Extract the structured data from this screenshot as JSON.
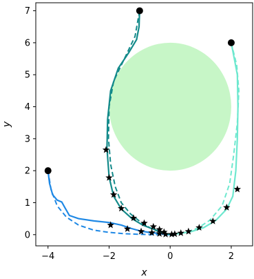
{
  "chart_data": {
    "type": "line",
    "title": "",
    "xlabel": "x",
    "ylabel": "y",
    "xlim": [
      -4.4,
      2.7
    ],
    "ylim": [
      -0.35,
      7.25
    ],
    "xticks": [
      -4,
      -2,
      0,
      2
    ],
    "yticks": [
      0,
      1,
      2,
      3,
      4,
      5,
      6,
      7
    ],
    "grid": false,
    "legend": "none",
    "obstacle": {
      "shape": "circle",
      "center": [
        0,
        4
      ],
      "radius": 2,
      "color": "#90ee90"
    },
    "series": [
      {
        "color": "#1e88e5",
        "start": [
          -4,
          2
        ],
        "solid": [
          [
            -4,
            2
          ],
          [
            -3.95,
            1.6
          ],
          [
            -3.85,
            1.25
          ],
          [
            -3.7,
            1.08
          ],
          [
            -3.55,
            1.02
          ],
          [
            -3.45,
            0.85
          ],
          [
            -3.3,
            0.6
          ],
          [
            -3.0,
            0.5
          ],
          [
            -2.5,
            0.43
          ],
          [
            -2.0,
            0.38
          ],
          [
            -1.6,
            0.3
          ],
          [
            -1.3,
            0.2
          ],
          [
            -1.0,
            0.12
          ],
          [
            -0.7,
            0.07
          ],
          [
            -0.4,
            0.04
          ],
          [
            -0.15,
            0.01
          ],
          [
            0,
            0
          ]
        ],
        "dashed": [
          [
            -4,
            2
          ],
          [
            -3.9,
            1.4
          ],
          [
            -3.7,
            0.9
          ],
          [
            -3.4,
            0.55
          ],
          [
            -3.0,
            0.3
          ],
          [
            -2.5,
            0.14
          ],
          [
            -2.0,
            0.07
          ],
          [
            -1.5,
            0.03
          ],
          [
            -1.0,
            0.01
          ],
          [
            -0.5,
            0
          ],
          [
            0,
            0
          ]
        ],
        "markers": [
          [
            -1.95,
            0.3
          ],
          [
            -1.4,
            0.18
          ],
          [
            -0.95,
            0.1
          ],
          [
            -0.6,
            0.06
          ],
          [
            -0.35,
            0.03
          ],
          [
            -0.15,
            0.01
          ]
        ]
      },
      {
        "color": "#138a8a",
        "start": [
          -1,
          7
        ],
        "solid": [
          [
            -1,
            7
          ],
          [
            -1.02,
            6.5
          ],
          [
            -1.1,
            6.1
          ],
          [
            -1.35,
            5.7
          ],
          [
            -1.7,
            5.2
          ],
          [
            -1.95,
            4.5
          ],
          [
            -2.05,
            3.6
          ],
          [
            -2.07,
            2.7
          ],
          [
            -2.0,
            1.8
          ],
          [
            -1.85,
            1.2
          ],
          [
            -1.6,
            0.8
          ],
          [
            -1.25,
            0.5
          ],
          [
            -0.9,
            0.3
          ],
          [
            -0.55,
            0.17
          ],
          [
            -0.25,
            0.07
          ],
          [
            0,
            0
          ]
        ],
        "dashed": [
          [
            -1,
            7
          ],
          [
            -1.15,
            6.2
          ],
          [
            -1.5,
            5.5
          ],
          [
            -1.85,
            4.8
          ],
          [
            -2.0,
            4.0
          ],
          [
            -2.02,
            3.0
          ],
          [
            -1.95,
            2.2
          ],
          [
            -1.8,
            1.5
          ],
          [
            -1.6,
            1.0
          ],
          [
            -1.3,
            0.65
          ],
          [
            -0.95,
            0.38
          ],
          [
            -0.6,
            0.18
          ],
          [
            -0.3,
            0.07
          ],
          [
            0,
            0
          ]
        ],
        "markers": [
          [
            -2.1,
            2.65
          ],
          [
            -2.0,
            1.78
          ],
          [
            -1.85,
            1.25
          ],
          [
            -1.6,
            0.82
          ],
          [
            -1.2,
            0.52
          ],
          [
            -0.85,
            0.36
          ],
          [
            -0.55,
            0.25
          ],
          [
            -0.35,
            0.16
          ],
          [
            -0.2,
            0.08
          ]
        ]
      },
      {
        "color": "#6ee8cf",
        "start": [
          2,
          6
        ],
        "solid": [
          [
            2,
            6
          ],
          [
            2.1,
            5.5
          ],
          [
            2.2,
            5.0
          ],
          [
            2.22,
            4.0
          ],
          [
            2.2,
            3.0
          ],
          [
            2.15,
            2.0
          ],
          [
            2.05,
            1.2
          ],
          [
            1.85,
            0.8
          ],
          [
            1.5,
            0.45
          ],
          [
            1.1,
            0.22
          ],
          [
            0.7,
            0.1
          ],
          [
            0.35,
            0.04
          ],
          [
            0,
            0
          ]
        ],
        "dashed": [
          [
            2,
            6
          ],
          [
            2.18,
            5.3
          ],
          [
            2.25,
            4.5
          ],
          [
            2.2,
            3.5
          ],
          [
            2.08,
            2.5
          ],
          [
            1.95,
            1.6
          ],
          [
            1.7,
            0.9
          ],
          [
            1.3,
            0.45
          ],
          [
            0.9,
            0.2
          ],
          [
            0.5,
            0.07
          ],
          [
            0,
            0
          ]
        ],
        "markers": [
          [
            2.2,
            1.42
          ],
          [
            1.85,
            0.85
          ],
          [
            1.4,
            0.42
          ],
          [
            0.95,
            0.22
          ],
          [
            0.6,
            0.1
          ],
          [
            0.35,
            0.05
          ],
          [
            0.15,
            0.02
          ],
          [
            0.05,
            0.01
          ]
        ]
      }
    ]
  }
}
